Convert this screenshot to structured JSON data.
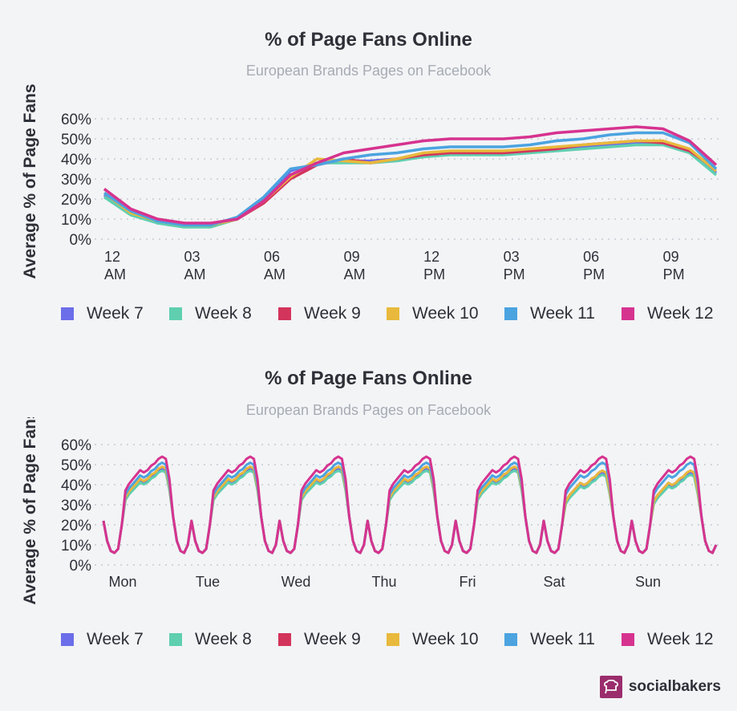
{
  "charts": [
    {
      "title": "% of Page Fans Online",
      "subtitle": "European Brands Pages on Facebook",
      "ylabel": "Average % of Page Fans"
    },
    {
      "title": "% of Page Fans Online",
      "subtitle": "European Brands Pages on Facebook",
      "ylabel": "Average % of Page Fans"
    }
  ],
  "legend": [
    {
      "name": "Week 7",
      "color": "#6b6ee8"
    },
    {
      "name": "Week 8",
      "color": "#5fcfb0"
    },
    {
      "name": "Week 9",
      "color": "#d3345b"
    },
    {
      "name": "Week 10",
      "color": "#e8b93c"
    },
    {
      "name": "Week 11",
      "color": "#4ba3e0"
    },
    {
      "name": "Week 12",
      "color": "#d6338f"
    }
  ],
  "brand": {
    "name": "socialbakers"
  },
  "chart_data": [
    {
      "type": "line",
      "title": "% of Page Fans Online",
      "subtitle": "European Brands Pages on Facebook",
      "ylabel": "Average % of Page Fans",
      "ylim": [
        0,
        60
      ],
      "yticks": [
        "0%",
        "10%",
        "20%",
        "30%",
        "40%",
        "50%",
        "60%"
      ],
      "xlim": [
        0,
        23
      ],
      "xticks": [
        {
          "x": 0,
          "l1": "12",
          "l2": "AM"
        },
        {
          "x": 3,
          "l1": "03",
          "l2": "AM"
        },
        {
          "x": 6,
          "l1": "06",
          "l2": "AM"
        },
        {
          "x": 9,
          "l1": "09",
          "l2": "AM"
        },
        {
          "x": 12,
          "l1": "12",
          "l2": "PM"
        },
        {
          "x": 15,
          "l1": "03",
          "l2": "PM"
        },
        {
          "x": 18,
          "l1": "06",
          "l2": "PM"
        },
        {
          "x": 21,
          "l1": "09",
          "l2": "PM"
        }
      ],
      "grid": true,
      "legend": "bottom",
      "series": [
        {
          "name": "Week 7",
          "values": [
            22,
            13,
            8,
            7,
            7,
            10,
            20,
            34,
            38,
            39,
            39,
            40,
            42,
            43,
            43,
            43,
            44,
            45,
            46,
            47,
            48,
            48,
            44,
            33
          ]
        },
        {
          "name": "Week 8",
          "values": [
            21,
            12,
            8,
            6,
            6,
            10,
            19,
            32,
            38,
            38,
            38,
            39,
            41,
            42,
            42,
            42,
            43,
            44,
            45,
            46,
            47,
            47,
            43,
            32
          ]
        },
        {
          "name": "Week 9",
          "values": [
            25,
            15,
            10,
            8,
            7,
            10,
            18,
            30,
            37,
            40,
            38,
            40,
            42,
            43,
            43,
            43,
            44,
            45,
            47,
            48,
            49,
            48,
            44,
            35
          ]
        },
        {
          "name": "Week 10",
          "values": [
            23,
            13,
            9,
            7,
            7,
            10,
            19,
            31,
            40,
            39,
            38,
            40,
            43,
            44,
            44,
            44,
            45,
            46,
            47,
            48,
            49,
            49,
            45,
            34
          ]
        },
        {
          "name": "Week 11",
          "values": [
            23,
            14,
            9,
            7,
            7,
            11,
            21,
            35,
            37,
            40,
            42,
            43,
            45,
            46,
            46,
            46,
            47,
            49,
            50,
            52,
            53,
            53,
            48,
            35
          ]
        },
        {
          "name": "Week 12",
          "values": [
            25,
            15,
            10,
            8,
            8,
            10,
            19,
            32,
            38,
            43,
            45,
            47,
            49,
            50,
            50,
            50,
            51,
            53,
            54,
            55,
            56,
            55,
            49,
            37
          ]
        }
      ]
    },
    {
      "type": "line",
      "title": "% of Page Fans Online",
      "subtitle": "European Brands Pages on Facebook",
      "ylabel": "Average % of Page Fans",
      "ylim": [
        0,
        60
      ],
      "yticks": [
        "0%",
        "10%",
        "20%",
        "30%",
        "40%",
        "50%",
        "60%"
      ],
      "xticks": [
        "Mon",
        "Tue",
        "Wed",
        "Thu",
        "Fri",
        "Sat",
        "Sun"
      ],
      "grid": true,
      "legend": "bottom",
      "series": [
        {
          "name": "Week 7",
          "offset": 0
        },
        {
          "name": "Week 8",
          "offset": -1
        },
        {
          "name": "Week 9",
          "offset": 1
        },
        {
          "name": "Week 10",
          "offset": 1
        },
        {
          "name": "Week 11",
          "offset": 3
        },
        {
          "name": "Week 12",
          "offset": 6
        }
      ],
      "day_base": [
        22,
        12,
        7,
        6,
        8,
        20,
        33,
        36,
        38,
        40,
        42,
        41,
        42,
        44,
        45,
        47,
        48,
        47,
        38,
        24,
        12,
        7,
        6,
        10
      ]
    }
  ]
}
